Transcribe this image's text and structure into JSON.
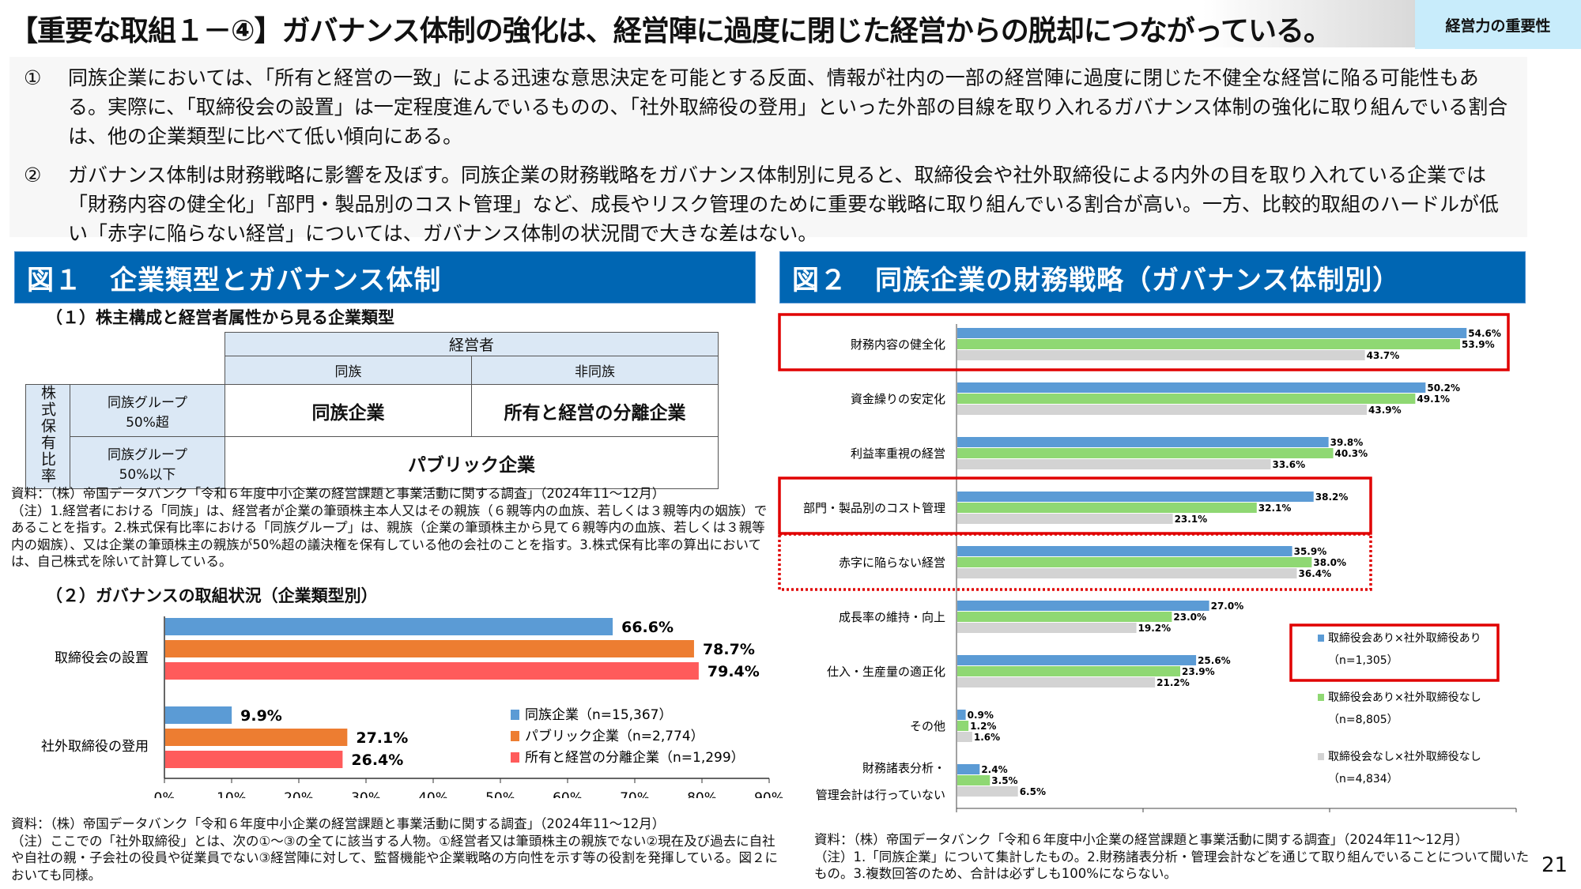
{
  "header": {
    "title": "【重要な取組１－④】ガバナンス体制の強化は、経営陣に過度に閉じた経営からの脱却につながっている。",
    "tag": "経営力の重要性"
  },
  "summary": [
    {
      "num": "①",
      "text": "同族企業においては、「所有と経営の一致」による迅速な意思決定を可能とする反面、情報が社内の一部の経営陣に過度に閉じた不健全な経営に陥る可能性もある。実際に、「取締役会の設置」は一定程度進んでいるものの、「社外取締役の登用」といった外部の目線を取り入れるガバナンス体制の強化に取り組んでいる割合は、他の企業類型に比べて低い傾向にある。"
    },
    {
      "num": "②",
      "text": "ガバナンス体制は財務戦略に影響を及ぼす。同族企業の財務戦略をガバナンス体制別に見ると、取締役会や社外取締役による内外の目を取り入れている企業では「財務内容の健全化」「部門・製品別のコスト管理」など、成長やリスク管理のために重要な戦略に取り組んでいる割合が高い。一方、比較的取組のハードルが低い「赤字に陥らない経営」については、ガバナンス体制の状況間で大きな差はない。"
    }
  ],
  "fig1": {
    "title": "図１　企業類型とガバナンス体制",
    "sub1": "（１）株主構成と経営者属性から見る企業類型",
    "table": {
      "manager_header": "経営者",
      "col_same": "同族",
      "col_diff": "非同族",
      "row_axis": "株式保有比率",
      "row1_label": "同族グループ\n50%超",
      "row2_label": "同族グループ\n50%以下",
      "cell_family": "同族企業",
      "cell_separated": "所有と経営の分離企業",
      "cell_public": "パブリック企業"
    },
    "note1": "資料：（株）帝国データバンク「令和６年度中小企業の経営課題と事業活動に関する調査」（2024年11～12月）\n（注）1.経営者における「同族」は、経営者が企業の筆頭株主本人又はその親族（６親等内の血族、若しくは３親等内の姻族）であることを指す。2.株式保有比率における「同族グループ」は、親族（企業の筆頭株主から見て６親等内の血族、若しくは３親等内の姻族）、又は企業の筆頭株主の親族が50%超の議決権を保有している他の会社のことを指す。3.株式保有比率の算出においては、自己株式を除いて計算している。",
    "sub2": "（２）ガバナンスの取組状況（企業類型別）",
    "note2": "資料：（株）帝国データバンク「令和６年度中小企業の経営課題と事業活動に関する調査」（2024年11～12月）\n（注）ここでの「社外取締役」とは、次の①～③の全てに該当する人物。①経営者又は筆頭株主の親族でない②現在及び過去に自社や自社の親・子会社の役員や従業員でない③経営陣に対して、監督機能や企業戦略の方向性を示す等の役割を発揮している。図２においても同様。"
  },
  "fig2": {
    "title": "図２　同族企業の財務戦略（ガバナンス体制別）",
    "note": "資料：（株）帝国データバンク「令和６年度中小企業の経営課題と事業活動に関する調査」（2024年11～12月）\n（注）1.「同族企業」について集計したもの。2.財務諸表分析・管理会計などを通じて取り組んでいることについて聞いたもの。3.複数回答のため、合計は必ずしも100%にならない。"
  },
  "page_number": "21",
  "chart_data": [
    {
      "type": "bar",
      "orientation": "horizontal",
      "title": "（２）ガバナンスの取組状況（企業類型別）",
      "categories": [
        "取締役会の設置",
        "社外取締役の登用"
      ],
      "series": [
        {
          "name": "同族企業（n=15,367）",
          "color": "#5b9bd5",
          "values": [
            66.6,
            9.9
          ]
        },
        {
          "name": "パブリック企業（n=2,774）",
          "color": "#ed7d31",
          "values": [
            78.7,
            27.1
          ]
        },
        {
          "name": "所有と経営の分離企業（n=1,299）",
          "color": "#ff5b5b",
          "values": [
            79.4,
            26.4
          ]
        }
      ],
      "xlim": [
        0,
        90
      ],
      "xticks": [
        "0%",
        "10%",
        "20%",
        "30%",
        "40%",
        "50%",
        "60%",
        "70%",
        "80%",
        "90%"
      ],
      "unit": "%",
      "legend": "bottom-right"
    },
    {
      "type": "bar",
      "orientation": "horizontal",
      "title": "同族企業の財務戦略（ガバナンス体制別）",
      "categories": [
        "財務内容の健全化",
        "資金繰りの安定化",
        "利益率重視の経営",
        "部門・製品別のコスト管理",
        "赤字に陥らない経営",
        "成長率の維持・向上",
        "仕入・生産量の適正化",
        "その他",
        "財務諸表分析・\n管理会計は行っていない"
      ],
      "series": [
        {
          "name": "取締役会あり×社外取締役あり（n=1,305）",
          "color": "#5b9bd5",
          "values": [
            54.6,
            50.2,
            39.8,
            38.2,
            35.9,
            27.0,
            25.6,
            0.9,
            2.4
          ]
        },
        {
          "name": "取締役会あり×社外取締役なし（n=8,805）",
          "color": "#8fd873",
          "values": [
            53.9,
            49.1,
            40.3,
            32.1,
            38.0,
            23.0,
            23.9,
            1.2,
            3.5
          ]
        },
        {
          "name": "取締役会なし×社外取締役なし（n=4,834）",
          "color": "#d3d3d3",
          "values": [
            43.7,
            43.9,
            33.6,
            23.1,
            36.4,
            19.2,
            21.2,
            1.6,
            6.5
          ]
        }
      ],
      "legend_items": [
        {
          "label": "取締役会あり×社外取締役あり",
          "n": "（n=1,305）"
        },
        {
          "label": "取締役会あり×社外取締役なし",
          "n": "（n=8,805）"
        },
        {
          "label": "取締役会なし×社外取締役なし",
          "n": "（n=4,834）"
        }
      ],
      "highlighted_solid": [
        "財務内容の健全化",
        "部門・製品別のコスト管理"
      ],
      "highlighted_dotted": [
        "赤字に陥らない経営"
      ],
      "xlim": [
        0,
        60
      ],
      "xticks": [
        "0%",
        "20%",
        "40%",
        "60%"
      ],
      "unit": "%",
      "legend": "right"
    }
  ]
}
